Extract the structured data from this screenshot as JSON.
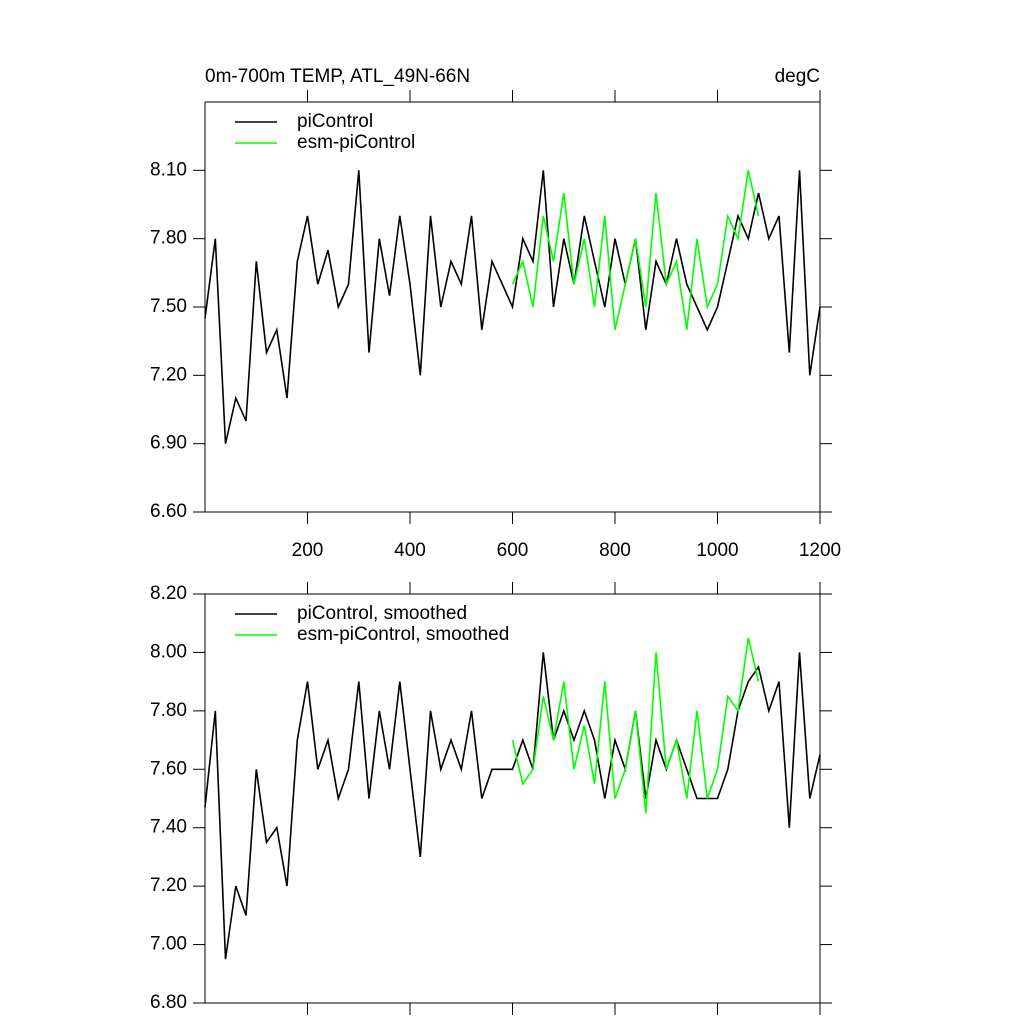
{
  "chart_data": [
    {
      "type": "line",
      "title": "0m-700m TEMP, ATL_49N-66N",
      "units": "degC",
      "xlim": [
        0,
        1200
      ],
      "xticks": [
        200,
        400,
        600,
        800,
        1000,
        1200
      ],
      "xtick_labels": true,
      "ylim": [
        6.6,
        8.4
      ],
      "yticks": [
        {
          "value": 6.6,
          "label": "6.60"
        },
        {
          "value": 6.9,
          "label": "6.90"
        },
        {
          "value": 7.2,
          "label": "7.20"
        },
        {
          "value": 7.5,
          "label": "7.50"
        },
        {
          "value": 7.8,
          "label": "7.80"
        },
        {
          "value": 8.1,
          "label": "8.10"
        }
      ],
      "series": [
        {
          "name": "piControl",
          "color": "#000000",
          "x": [
            0,
            20,
            40,
            60,
            80,
            100,
            120,
            140,
            160,
            180,
            200,
            220,
            240,
            260,
            280,
            300,
            320,
            340,
            360,
            380,
            400,
            420,
            440,
            460,
            480,
            500,
            520,
            540,
            560,
            580,
            600,
            620,
            640,
            660,
            680,
            700,
            720,
            740,
            760,
            780,
            800,
            820,
            840,
            860,
            880,
            900,
            920,
            940,
            960,
            980,
            1000,
            1020,
            1040,
            1060,
            1080,
            1100,
            1120,
            1140,
            1160,
            1180,
            1200
          ],
          "values": [
            7.45,
            7.8,
            6.9,
            7.1,
            7.0,
            7.7,
            7.3,
            7.4,
            7.1,
            7.7,
            7.9,
            7.6,
            7.75,
            7.5,
            7.6,
            8.1,
            7.3,
            7.8,
            7.55,
            7.9,
            7.6,
            7.2,
            7.9,
            7.5,
            7.7,
            7.6,
            7.9,
            7.4,
            7.7,
            7.6,
            7.5,
            7.8,
            7.7,
            8.1,
            7.5,
            7.8,
            7.6,
            7.9,
            7.7,
            7.5,
            7.8,
            7.6,
            7.8,
            7.4,
            7.7,
            7.6,
            7.8,
            7.6,
            7.5,
            7.4,
            7.5,
            7.7,
            7.9,
            7.8,
            8.0,
            7.8,
            7.9,
            7.3,
            8.1,
            7.2,
            7.5
          ]
        },
        {
          "name": "esm-piControl",
          "color": "#00ff00",
          "x": [
            600,
            620,
            640,
            660,
            680,
            700,
            720,
            740,
            760,
            780,
            800,
            820,
            840,
            860,
            880,
            900,
            920,
            940,
            960,
            980,
            1000,
            1020,
            1040,
            1060,
            1080
          ],
          "values": [
            7.6,
            7.7,
            7.5,
            7.9,
            7.7,
            8.0,
            7.6,
            7.8,
            7.5,
            7.9,
            7.4,
            7.6,
            7.8,
            7.5,
            8.0,
            7.6,
            7.7,
            7.4,
            7.8,
            7.5,
            7.6,
            7.9,
            7.8,
            8.1,
            7.9
          ]
        }
      ]
    },
    {
      "type": "line",
      "xlim": [
        0,
        1200
      ],
      "xticks": [
        200,
        400,
        600,
        800,
        1000,
        1200
      ],
      "xtick_labels": false,
      "ylim": [
        6.8,
        8.2
      ],
      "yticks": [
        {
          "value": 6.8,
          "label": "6.80"
        },
        {
          "value": 7.0,
          "label": "7.00"
        },
        {
          "value": 7.2,
          "label": "7.20"
        },
        {
          "value": 7.4,
          "label": "7.40"
        },
        {
          "value": 7.6,
          "label": "7.60"
        },
        {
          "value": 7.8,
          "label": "7.80"
        },
        {
          "value": 8.0,
          "label": "8.00"
        },
        {
          "value": 8.2,
          "label": "8.20"
        }
      ],
      "series": [
        {
          "name": "piControl, smoothed",
          "color": "#000000",
          "x": [
            0,
            20,
            40,
            60,
            80,
            100,
            120,
            140,
            160,
            180,
            200,
            220,
            240,
            260,
            280,
            300,
            320,
            340,
            360,
            380,
            400,
            420,
            440,
            460,
            480,
            500,
            520,
            540,
            560,
            580,
            600,
            620,
            640,
            660,
            680,
            700,
            720,
            740,
            760,
            780,
            800,
            820,
            840,
            860,
            880,
            900,
            920,
            940,
            960,
            980,
            1000,
            1020,
            1040,
            1060,
            1080,
            1100,
            1120,
            1140,
            1160,
            1180,
            1200
          ],
          "values": [
            7.47,
            7.8,
            6.95,
            7.2,
            7.1,
            7.6,
            7.35,
            7.4,
            7.2,
            7.7,
            7.9,
            7.6,
            7.7,
            7.5,
            7.6,
            7.9,
            7.5,
            7.8,
            7.6,
            7.9,
            7.6,
            7.3,
            7.8,
            7.6,
            7.7,
            7.6,
            7.8,
            7.5,
            7.6,
            7.6,
            7.6,
            7.7,
            7.6,
            8.0,
            7.7,
            7.8,
            7.7,
            7.8,
            7.7,
            7.5,
            7.7,
            7.6,
            7.8,
            7.5,
            7.7,
            7.6,
            7.7,
            7.6,
            7.5,
            7.5,
            7.5,
            7.6,
            7.8,
            7.9,
            7.95,
            7.8,
            7.9,
            7.4,
            8.0,
            7.5,
            7.65
          ]
        },
        {
          "name": "esm-piControl, smoothed",
          "color": "#00ff00",
          "x": [
            600,
            620,
            640,
            660,
            680,
            700,
            720,
            740,
            760,
            780,
            800,
            820,
            840,
            860,
            880,
            900,
            920,
            940,
            960,
            980,
            1000,
            1020,
            1040,
            1060,
            1080
          ],
          "values": [
            7.7,
            7.55,
            7.6,
            7.85,
            7.7,
            7.9,
            7.6,
            7.75,
            7.55,
            7.9,
            7.5,
            7.6,
            7.8,
            7.45,
            8.0,
            7.6,
            7.7,
            7.5,
            7.8,
            7.5,
            7.6,
            7.85,
            7.8,
            8.05,
            7.9
          ]
        }
      ]
    }
  ]
}
